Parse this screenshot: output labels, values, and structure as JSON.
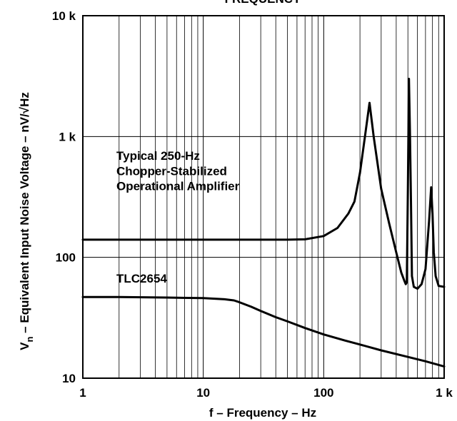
{
  "chart_data": {
    "type": "line",
    "title": "FREQUENCY",
    "xlabel": "f – Frequency – Hz",
    "ylabel_main": "V",
    "ylabel_sub": "n",
    "ylabel_rest": " – Equivalent Input Noise Voltage – nV/√Hz",
    "x_scale": "log",
    "y_scale": "log",
    "xlim": [
      1,
      1000
    ],
    "ylim": [
      10,
      10000
    ],
    "x_ticks": [
      {
        "value": 1,
        "label": "1"
      },
      {
        "value": 10,
        "label": "10"
      },
      {
        "value": 100,
        "label": "100"
      },
      {
        "value": 1000,
        "label": "1 k"
      }
    ],
    "y_ticks": [
      {
        "value": 10,
        "label": "10"
      },
      {
        "value": 100,
        "label": "100"
      },
      {
        "value": 1000,
        "label": "1 k"
      },
      {
        "value": 10000,
        "label": "10 k"
      }
    ],
    "grid": true,
    "annotations": [
      {
        "text": "Typical 250-Hz",
        "x": 1.9,
        "y": 640
      },
      {
        "text": "Chopper-Stabilized",
        "x": 1.9,
        "y": 480
      },
      {
        "text": "Operational Amplifier",
        "x": 1.9,
        "y": 360
      },
      {
        "text": "TLC2654",
        "x": 1.9,
        "y": 62
      }
    ],
    "series": [
      {
        "name": "Typical 250-Hz Chopper-Stabilized Operational Amplifier",
        "x": [
          1,
          2,
          5,
          10,
          20,
          50,
          70,
          100,
          130,
          160,
          180,
          200,
          220,
          240,
          260,
          300,
          350,
          400,
          440,
          470,
          480,
          490,
          500,
          510,
          520,
          530,
          540,
          560,
          600,
          650,
          700,
          750,
          780,
          800,
          820,
          850,
          900,
          1000
        ],
        "y": [
          140,
          140,
          140,
          140,
          140,
          140,
          141,
          150,
          175,
          230,
          290,
          500,
          1000,
          1900,
          1000,
          370,
          190,
          110,
          75,
          63,
          60,
          62,
          360,
          3000,
          1100,
          300,
          70,
          57,
          55,
          60,
          80,
          200,
          380,
          230,
          110,
          70,
          58,
          57
        ]
      },
      {
        "name": "TLC2654",
        "x": [
          1,
          2,
          5,
          10,
          15,
          18,
          20,
          25,
          30,
          40,
          50,
          70,
          100,
          150,
          200,
          300,
          500,
          700,
          1000
        ],
        "y": [
          47,
          47,
          46.5,
          46,
          45,
          44,
          42.5,
          39,
          36,
          32,
          29.5,
          26,
          23,
          20.5,
          19,
          17,
          15,
          13.8,
          12.5
        ]
      }
    ]
  }
}
